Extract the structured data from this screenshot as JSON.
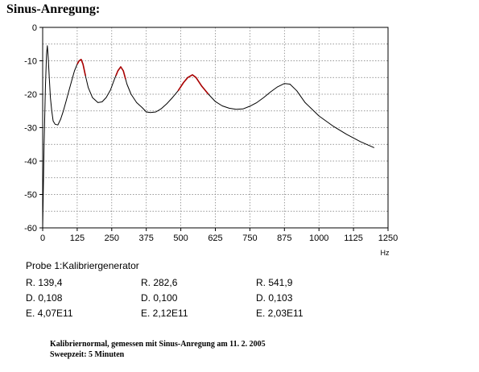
{
  "heading": "Sinus-Anregung:",
  "chart_data": {
    "type": "line",
    "title": "",
    "xlabel": "Hz",
    "ylabel": "",
    "xlim": [
      0,
      1250
    ],
    "ylim": [
      -60,
      0
    ],
    "x_ticks": [
      0,
      125,
      250,
      375,
      500,
      625,
      750,
      875,
      1000,
      1125,
      1250
    ],
    "x_tick_labels": [
      "0",
      "125",
      "250",
      "375",
      "500",
      "625",
      "750",
      "875",
      "1000",
      "1125",
      "1250"
    ],
    "y_ticks": [
      0,
      -10,
      -20,
      -30,
      -40,
      -50,
      -60
    ],
    "y_tick_labels": [
      "0",
      "-10",
      "-20",
      "-30",
      "-40",
      "-50",
      "-60"
    ],
    "grid": true,
    "series": [
      {
        "color": "#000000",
        "x": [
          0,
          5,
          10,
          14,
          17,
          20,
          24,
          28,
          33,
          38,
          45,
          55,
          65,
          75,
          85,
          95,
          105,
          115,
          125,
          132,
          139.4,
          146,
          155,
          165,
          180,
          200,
          215,
          230,
          245,
          260,
          272,
          282.6,
          292,
          305,
          320,
          340,
          360,
          375,
          390,
          410,
          430,
          450,
          470,
          490,
          510,
          525,
          541.9,
          555,
          575,
          600,
          625,
          650,
          675,
          700,
          725,
          750,
          775,
          800,
          825,
          850,
          875,
          895,
          920,
          950,
          1000,
          1050,
          1100,
          1150,
          1200
        ],
        "y": [
          -60,
          -36,
          -18,
          -8,
          -5.5,
          -9,
          -15,
          -21,
          -25,
          -28,
          -29,
          -29.2,
          -27.5,
          -25,
          -22,
          -19,
          -16,
          -13,
          -11,
          -10,
          -9.6,
          -11,
          -14.5,
          -18,
          -21,
          -22.5,
          -22.3,
          -21,
          -18.8,
          -15.5,
          -13,
          -11.8,
          -13,
          -17,
          -20,
          -22.5,
          -24,
          -25.3,
          -25.5,
          -25.3,
          -24.3,
          -22.8,
          -21,
          -19,
          -16.5,
          -15,
          -14.2,
          -15,
          -17.5,
          -20,
          -22.2,
          -23.5,
          -24.2,
          -24.5,
          -24.4,
          -23.6,
          -22.5,
          -21,
          -19.3,
          -17.8,
          -16.8,
          -17,
          -19,
          -22.5,
          -26.5,
          -29.5,
          -32,
          -34.2,
          -36
        ]
      },
      {
        "color": "#aa0000",
        "x": [
          125,
          132,
          139.4,
          146,
          155
        ],
        "y": [
          -11,
          -10,
          -9.6,
          -11,
          -14.5
        ]
      },
      {
        "color": "#aa0000",
        "x": [
          265,
          272,
          282.6,
          292,
          300
        ],
        "y": [
          -14.5,
          -13,
          -11.8,
          -13,
          -15.5
        ]
      },
      {
        "color": "#aa0000",
        "x": [
          490,
          510,
          525,
          541.9,
          555,
          575,
          600
        ],
        "y": [
          -19,
          -16.5,
          -15,
          -14.2,
          -15,
          -17.5,
          -20
        ]
      }
    ]
  },
  "probe": {
    "title": "Probe 1:Kalibriergenerator",
    "rows": [
      [
        "R. 139,4",
        "R. 282,6",
        "R. 541,9"
      ],
      [
        "D. 0,108",
        "D. 0,100",
        "D. 0,103"
      ],
      [
        "E. 4,07E11",
        "E. 2,12E11",
        "E. 2,03E11"
      ]
    ]
  },
  "footnote": {
    "line1": "Kalibriernormal, gemessen mit Sinus-Anregung am 11. 2. 2005",
    "line2": "Sweepzeit: 5 Minuten"
  }
}
